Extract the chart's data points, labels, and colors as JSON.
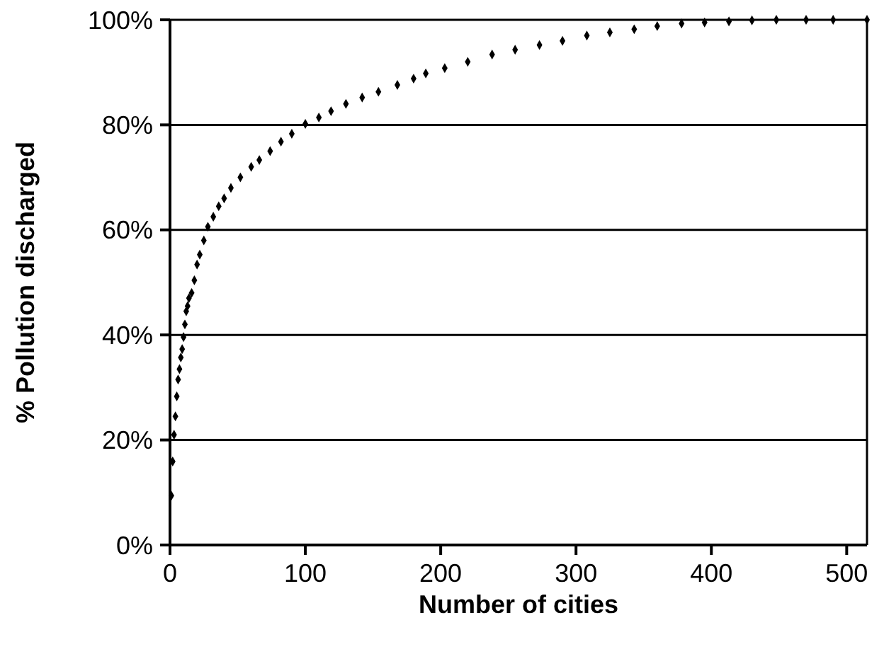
{
  "chart_data": {
    "type": "scatter",
    "xlabel": "Number of cities",
    "ylabel": "% Pollution discharged",
    "x": [
      1,
      2,
      3,
      4,
      5,
      6,
      7,
      8,
      9,
      10,
      11,
      12,
      13,
      14,
      16,
      18,
      20,
      22,
      25,
      28,
      32,
      36,
      40,
      45,
      52,
      60,
      66,
      74,
      82,
      90,
      100,
      110,
      119,
      130,
      142,
      154,
      168,
      180,
      189,
      203,
      220,
      238,
      255,
      273,
      290,
      308,
      325,
      343,
      360,
      378,
      395,
      413,
      430,
      448,
      470,
      490,
      515
    ],
    "series": [
      {
        "color": "#000000",
        "values": [
          9.4,
          15.9,
          21,
          24.5,
          28.3,
          31.5,
          33.5,
          35.7,
          37.3,
          39.6,
          42,
          44.5,
          45.5,
          47,
          48,
          50.4,
          53.4,
          55.3,
          58,
          60.6,
          62.5,
          64.5,
          66,
          68,
          70,
          72,
          73.3,
          75,
          76.8,
          78.3,
          80.2,
          81.4,
          82.6,
          84,
          85.2,
          86.3,
          87.6,
          88.8,
          89.8,
          90.8,
          92,
          93.4,
          94.3,
          95.2,
          96,
          97,
          97.6,
          98.2,
          98.8,
          99.3,
          99.5,
          99.7,
          99.9,
          100,
          100,
          100,
          100
        ]
      }
    ],
    "xlim": [
      0,
      515
    ],
    "xticks": [
      0,
      100,
      200,
      300,
      400,
      500
    ],
    "ylim": [
      0,
      100
    ],
    "yticks": [
      {
        "value": 0,
        "label": "0%"
      },
      {
        "value": 20,
        "label": "20%"
      },
      {
        "value": 40,
        "label": "40%"
      },
      {
        "value": 60,
        "label": "60%"
      },
      {
        "value": 80,
        "label": "80%"
      },
      {
        "value": 100,
        "label": "100%"
      }
    ],
    "grid": "y",
    "marker": "diamond"
  }
}
